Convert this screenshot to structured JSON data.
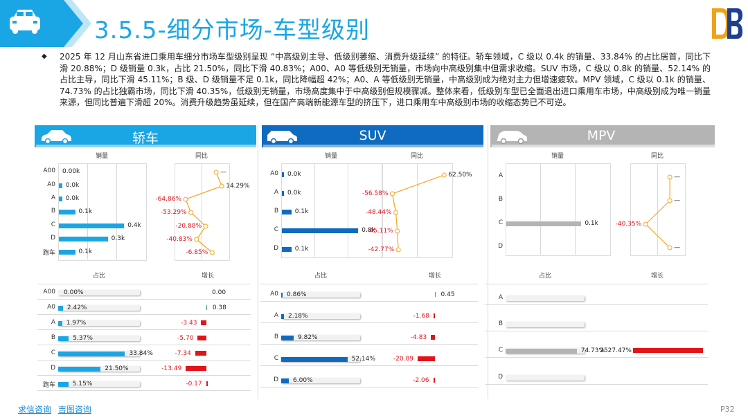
{
  "title": "3.5.5-细分市场-车型级别",
  "intro": "2025 年 12 月山东省进口乘用车细分市场车型级别呈现 “中高级别主导、低级别萎缩、消费升级延续” 的特征。轿车领域，C 级以 0.4k 的销量、33.84% 的占比居首，同比下滑 20.88%；D 级销量 0.3k，占比 21.50%，同比下滑 40.83%；A00、A0 等低级别无销量，市场向中高级别集中但需求收缩。SUV 市场，C 级以 0.8k 的销量、52.14% 的占比主导，同比下滑 45.11%；B 级、D 级销量不足 0.1k，同比降幅超 42%；A0、A 等低级别无销量，中高级别成为绝对主力但增速疲软。MPV 领域，C 级以 0.1k 的销量、74.73% 的占比独霸市场，同比下滑 40.35%，低级别无销量，市场高度集中于中高级别但规模骤减。整体来看，低级别车型已全面退出进口乘用车市场，中高级别成为唯一销量来源，但同比普遍下滑超 20%。消费升级趋势虽延续，但在国产高端新能源车型的挤压下，进口乘用车中高级别市场的收缩态势已不可逆。",
  "colors": {
    "sedan": "#1aa6e4",
    "suv": "#0f6bbf",
    "mpv": "#b4b4b4",
    "yoy_line": "#f5a623",
    "neg": "#e4131b",
    "pos": "#2aa876"
  },
  "sections": [
    {
      "key": "sedan",
      "name": "轿车",
      "icon": "sedan-car-icon",
      "h_sales": "销量",
      "h_yoy": "同比",
      "h_share": "占比",
      "h_growth": "增长",
      "cats": [
        "A00",
        "A0",
        "A",
        "B",
        "C",
        "D",
        "跑车"
      ],
      "sales": [
        0.0,
        0.02,
        0.02,
        0.1,
        0.4,
        0.3,
        0.1
      ],
      "sales_labels": [
        "0.00k",
        "0.0k",
        "0.0k",
        "0.1k",
        "0.4k",
        "0.3k",
        "0.1k"
      ],
      "yoy": [
        null,
        14.29,
        -64.86,
        -53.29,
        -20.88,
        -40.83,
        -6.85
      ],
      "yoy_labels": [
        "—",
        "14.29%",
        "-64.86%",
        "-53.29%",
        "-20.88%",
        "-40.83%",
        "-6.85%"
      ],
      "share": [
        0.0,
        2.42,
        1.97,
        5.37,
        33.84,
        21.5,
        5.15
      ],
      "share_labels": [
        "0.00%",
        "2.42%",
        "1.97%",
        "5.37%",
        "33.84%",
        "21.50%",
        "5.15%"
      ],
      "growth": [
        0.0,
        0.38,
        -3.43,
        -5.7,
        -7.34,
        -13.49,
        -0.17
      ],
      "growth_labels": [
        "0.00",
        "0.38",
        "-3.43",
        "-5.70",
        "-7.34",
        "-13.49",
        "-0.17"
      ]
    },
    {
      "key": "suv",
      "name": "SUV",
      "icon": "suv-car-icon",
      "h_sales": "销量",
      "h_yoy": "同比",
      "h_share": "占比",
      "h_growth": "增长",
      "cats": [
        "A0",
        "A",
        "B",
        "C",
        "D"
      ],
      "sales": [
        0.01,
        0.02,
        0.1,
        0.8,
        0.1
      ],
      "sales_labels": [
        "0.0k",
        "0.0k",
        "0.1k",
        "0.8k",
        "0.1k"
      ],
      "yoy": [
        62.5,
        -56.58,
        -48.44,
        -45.11,
        -42.77
      ],
      "yoy_labels": [
        "62.50%",
        "-56.58%",
        "-48.44%",
        "-45.11%",
        "-42.77%"
      ],
      "share": [
        0.86,
        2.18,
        9.82,
        52.14,
        6.0
      ],
      "share_labels": [
        "0.86%",
        "2.18%",
        "9.82%",
        "52.14%",
        "6.00%"
      ],
      "growth": [
        0.45,
        -1.68,
        -4.83,
        -20.89,
        -2.06
      ],
      "growth_labels": [
        "0.45",
        "-1.68",
        "-4.83",
        "-20.89",
        "-2.06"
      ]
    },
    {
      "key": "mpv",
      "name": "MPV",
      "icon": "mpv-car-icon",
      "h_sales": "销量",
      "h_yoy": "同比",
      "h_share": "占比",
      "h_growth": "增长",
      "cats": [
        "A",
        "B",
        "C",
        "D"
      ],
      "sales": [
        0,
        0,
        0.1,
        0
      ],
      "sales_labels": [
        "",
        "",
        "0.1k",
        ""
      ],
      "yoy": [
        null,
        null,
        -40.35,
        null
      ],
      "yoy_labels": [
        "—",
        "—",
        "-40.35%",
        "—"
      ],
      "share": [
        0,
        0,
        74.73,
        0
      ],
      "share_labels": [
        "",
        "",
        "74.73%",
        ""
      ],
      "growth": [
        0,
        0,
        2527.47,
        0
      ],
      "growth_labels": [
        "",
        "",
        "2527.47%",
        ""
      ]
    }
  ],
  "footer": {
    "link1": "求信咨询",
    "link2": "吉图咨询"
  },
  "page": "P32"
}
